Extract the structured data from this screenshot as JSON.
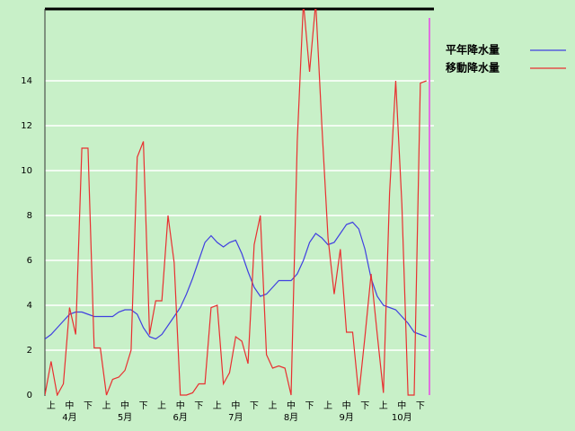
{
  "chart_data": {
    "type": "line",
    "categories": [
      null,
      "上",
      null,
      null,
      "中",
      null,
      null,
      "下",
      null,
      null,
      "上",
      null,
      null,
      "中",
      null,
      null,
      "下",
      null,
      null,
      "上",
      null,
      null,
      "中",
      null,
      null,
      "下",
      null,
      null,
      "上",
      null,
      null,
      "中",
      null,
      null,
      "下",
      null,
      null,
      "上",
      null,
      null,
      "中",
      null,
      null,
      "下",
      null,
      null,
      "上",
      null,
      null,
      "中",
      null,
      null,
      "下",
      null,
      null,
      "上",
      null,
      null,
      "中",
      null,
      null,
      "下",
      null
    ],
    "months": [
      "4月",
      "5月",
      "6月",
      "7月",
      "8月",
      "9月",
      "10月"
    ],
    "series": [
      {
        "name": "平年降水量",
        "color": "#4040e0",
        "values": [
          2.5,
          2.7,
          3.0,
          3.3,
          3.6,
          3.7,
          3.7,
          3.6,
          3.5,
          3.5,
          3.5,
          3.5,
          3.7,
          3.8,
          3.8,
          3.6,
          3.0,
          2.6,
          2.5,
          2.7,
          3.1,
          3.5,
          3.9,
          4.5,
          5.2,
          6.0,
          6.8,
          7.1,
          6.8,
          6.6,
          6.8,
          6.9,
          6.3,
          5.5,
          4.8,
          4.4,
          4.5,
          4.8,
          5.1,
          5.1,
          5.1,
          5.4,
          6.0,
          6.8,
          7.2,
          7.0,
          6.7,
          6.8,
          7.2,
          7.6,
          7.7,
          7.4,
          6.5,
          5.2,
          4.4,
          4.0,
          3.9,
          3.8,
          3.5,
          3.2,
          2.8,
          2.7,
          2.6
        ]
      },
      {
        "name": "移動降水量",
        "color": "#e83030",
        "values": [
          0,
          1.5,
          0,
          0.5,
          3.9,
          2.7,
          11.0,
          11.0,
          2.1,
          2.1,
          0,
          0.7,
          0.8,
          1.1,
          2.0,
          10.6,
          11.3,
          2.7,
          4.2,
          4.2,
          8.0,
          5.9,
          0,
          0,
          0.1,
          0.5,
          0.5,
          3.9,
          4.0,
          0.5,
          1.0,
          2.6,
          2.4,
          1.4,
          6.7,
          8.0,
          1.8,
          1.2,
          1.3,
          1.2,
          0,
          11.3,
          17.5,
          14.4,
          17.5,
          12.0,
          7.0,
          4.5,
          6.5,
          2.8,
          2.8,
          0,
          2.6,
          5.4,
          2.7,
          0.1,
          9.0,
          14.0,
          8.5,
          0,
          0,
          13.9,
          14.0
        ]
      }
    ],
    "ylim": [
      0,
      17.2
    ],
    "yticks": [
      0,
      2,
      4,
      6,
      8,
      10,
      12,
      14
    ],
    "grid": true
  }
}
